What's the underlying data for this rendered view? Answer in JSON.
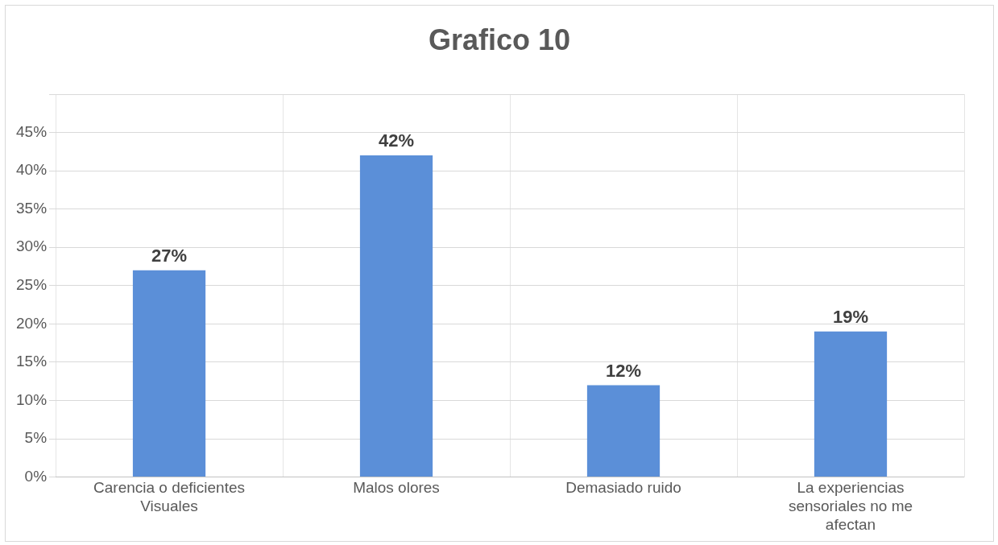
{
  "chart_data": {
    "type": "bar",
    "title": "Grafico 10",
    "categories": [
      "Carencia o deficientes Visuales",
      "Malos olores",
      "Demasiado ruido",
      "La experiencias sensoriales no me afectan"
    ],
    "values": [
      27,
      42,
      12,
      19
    ],
    "value_labels": [
      "27%",
      "42%",
      "12%",
      "19%"
    ],
    "color": "#5b8fd8",
    "ylim": [
      0,
      50
    ],
    "yticks": [
      {
        "value": 0,
        "label": "0%"
      },
      {
        "value": 5,
        "label": "5%"
      },
      {
        "value": 10,
        "label": "10%"
      },
      {
        "value": 15,
        "label": "15%"
      },
      {
        "value": 20,
        "label": "20%"
      },
      {
        "value": 25,
        "label": "25%"
      },
      {
        "value": 30,
        "label": "30%"
      },
      {
        "value": 35,
        "label": "35%"
      },
      {
        "value": 40,
        "label": "40%"
      },
      {
        "value": 45,
        "label": "45%"
      },
      {
        "value": 50,
        "label": null
      }
    ],
    "grid": true,
    "legend": false
  }
}
